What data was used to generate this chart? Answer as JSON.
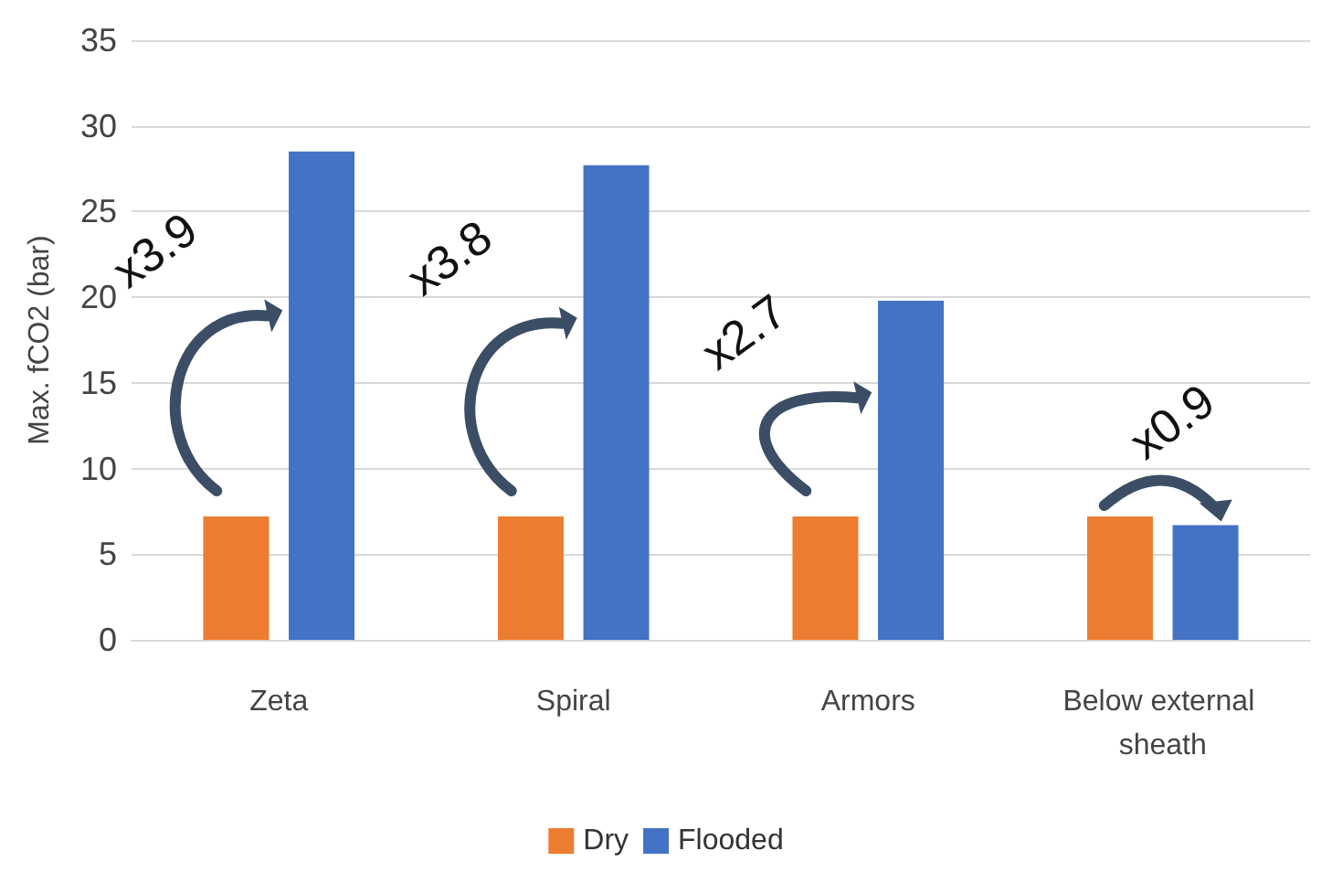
{
  "chart_data": {
    "type": "bar",
    "ylabel": "Max. fCO2 (bar)",
    "categories": [
      "Zeta",
      "Spiral",
      "Armors",
      "Below external sheath"
    ],
    "series": [
      {
        "name": "Dry",
        "color": "#ed7d31",
        "values": [
          7.2,
          7.2,
          7.2,
          7.2
        ]
      },
      {
        "name": "Flooded",
        "color": "#4472c4",
        "values": [
          28.5,
          27.7,
          19.8,
          6.7
        ]
      }
    ],
    "ylim": [
      0,
      35
    ],
    "yticks": [
      0,
      5,
      10,
      15,
      20,
      25,
      30,
      35
    ],
    "grid": "y",
    "legend": "bottom",
    "annotations": [
      "x3.9",
      "x3.8",
      "x2.7",
      "x0.9"
    ]
  }
}
